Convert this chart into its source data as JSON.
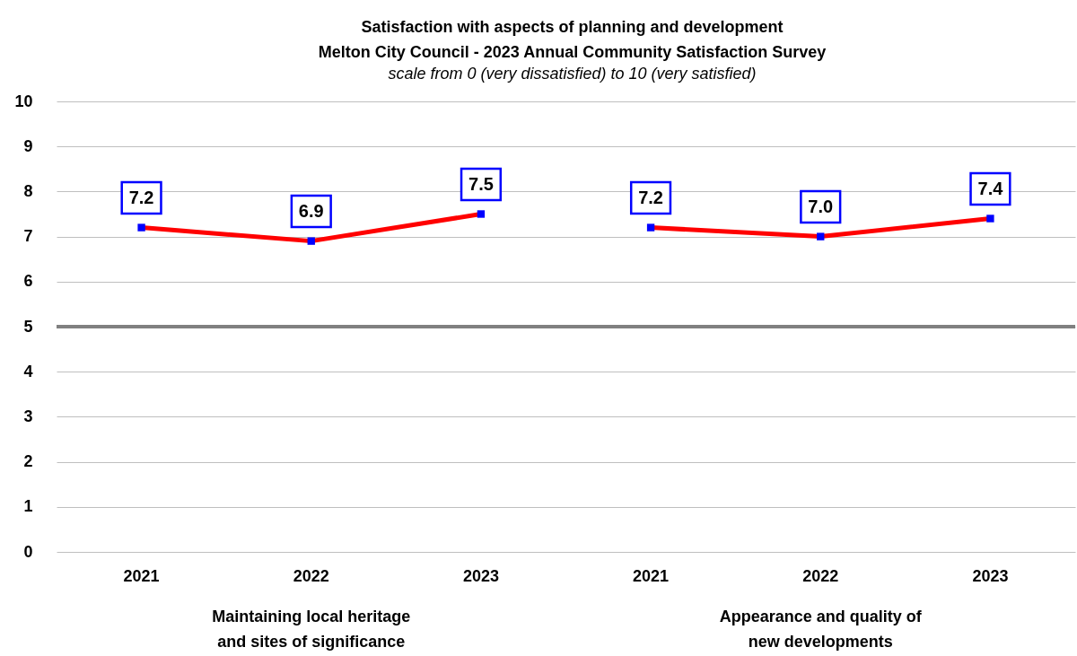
{
  "chart_data": {
    "type": "line",
    "title": "Satisfaction  with aspects of planning and development\nMelton City Council - 2023 Annual Community Satisfaction Survey",
    "subtitle": "scale from 0 (very dissatisfied) to 10 (very satisfied)",
    "categories": [
      "2021",
      "2022",
      "2023",
      "2021",
      "2022",
      "2023"
    ],
    "series": [
      {
        "color": "#ff0000",
        "values": [
          7.2,
          6.9,
          7.5,
          null,
          null,
          null
        ]
      },
      {
        "color": "#ff0000",
        "values": [
          null,
          null,
          null,
          7.2,
          7.0,
          7.4
        ]
      },
      {
        "type": "scatter",
        "marker": "square",
        "color": "#0000ff",
        "values": [
          7.2,
          6.9,
          7.5,
          7.2,
          7.0,
          7.4
        ],
        "value_labels": [
          "7.2",
          "6.9",
          "7.5",
          "7.2",
          "7.0",
          "7.4"
        ]
      }
    ],
    "ylim": [
      0,
      10
    ],
    "yticks": [
      0,
      1,
      2,
      3,
      4,
      5,
      6,
      7,
      8,
      9,
      10
    ],
    "grid": "y",
    "ref_lines": [
      {
        "axis": "y",
        "value": 5,
        "color": "#808080"
      }
    ],
    "annotations": [
      "Maintaining local heritage and sites of significance",
      "Appearance and quality of new developments"
    ]
  }
}
